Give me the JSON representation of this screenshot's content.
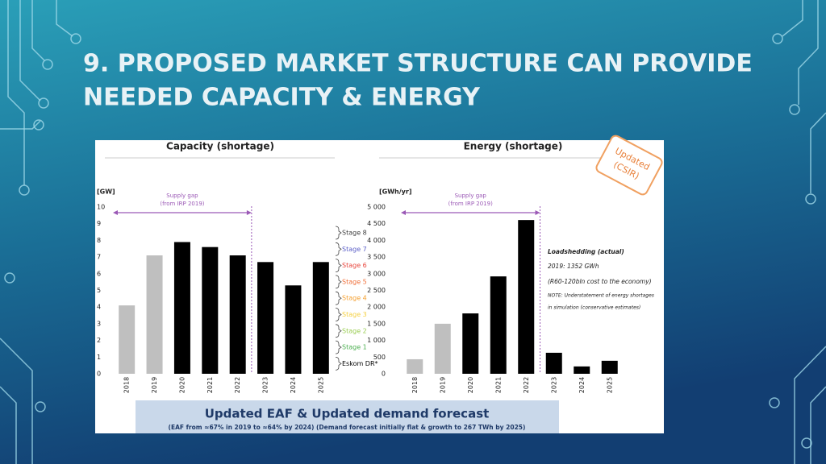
{
  "slide_title": [
    "9. PROPOSED MARKET STRUCTURE CAN PROVIDE",
    "NEEDED CAPACITY & ENERGY"
  ],
  "chart_data": [
    {
      "type": "bar",
      "title": "Capacity (shortage)",
      "y_label": "[GW]",
      "annotation": [
        "Supply gap",
        "(from IRP 2019)"
      ],
      "categories": [
        "2018",
        "2019",
        "2020",
        "2021",
        "2022",
        "2023",
        "2024",
        "2025"
      ],
      "values": [
        4.1,
        7.1,
        7.9,
        7.6,
        7.1,
        6.7,
        5.3,
        6.7
      ],
      "colors": [
        "#bfbfbf",
        "#bfbfbf",
        "#000000",
        "#000000",
        "#000000",
        "#000000",
        "#000000",
        "#000000"
      ],
      "ylim": [
        0,
        10
      ],
      "yticks": [
        0,
        1,
        2,
        3,
        4,
        5,
        6,
        7,
        8,
        9,
        10
      ],
      "stage_labels": [
        {
          "text": "Stage 8",
          "color": "#404040"
        },
        {
          "text": "Stage 7",
          "color": "#5b5fc7"
        },
        {
          "text": "Stage 6",
          "color": "#e8453c"
        },
        {
          "text": "Stage 5",
          "color": "#f0703a"
        },
        {
          "text": "Stage 4",
          "color": "#f5a030"
        },
        {
          "text": "Stage 3",
          "color": "#f5d040"
        },
        {
          "text": "Stage 2",
          "color": "#9acd52"
        },
        {
          "text": "Stage 1",
          "color": "#4caf50"
        },
        {
          "text": "Eskom DR*",
          "color": "#000000"
        }
      ]
    },
    {
      "type": "bar",
      "title": "Energy (shortage)",
      "y_label": "[GWh/yr]",
      "annotation": [
        "Supply gap",
        "(from IRP 2019)"
      ],
      "categories": [
        "2018",
        "2019",
        "2020",
        "2021",
        "2022",
        "2023",
        "2024",
        "2025"
      ],
      "values": [
        435,
        1500,
        1810,
        2920,
        4610,
        630,
        220,
        390
      ],
      "colors": [
        "#bfbfbf",
        "#bfbfbf",
        "#000000",
        "#000000",
        "#000000",
        "#000000",
        "#000000",
        "#000000"
      ],
      "ylim": [
        0,
        5000
      ],
      "yticks": [
        0,
        500,
        {
          "value": 1000,
          "label": "1 000"
        },
        {
          "value": 1500,
          "label": "1 500"
        },
        {
          "value": 2000,
          "label": "2 000"
        },
        {
          "value": 2500,
          "label": "2 500"
        },
        {
          "value": 3000,
          "label": "3 000"
        },
        {
          "value": 3500,
          "label": "3 500"
        },
        {
          "value": 4000,
          "label": "4 000"
        },
        {
          "value": 4500,
          "label": "4 500"
        },
        {
          "value": 5000,
          "label": "5 000"
        }
      ],
      "notes": [
        "Loadshedding (actual)",
        "2019: 1352 GWh",
        "(R60-120bln cost to the economy)",
        "NOTE: Understatement of energy shortages",
        "in simulation (conservative estimates)"
      ]
    }
  ],
  "stamp": [
    "Updated",
    "(CSIR)"
  ],
  "banner": {
    "title": "Updated EAF & Updated demand forecast",
    "subtitle": "(EAF from ≈67% in 2019 to ≈64% by 2024) (Demand forecast initially flat & growth to 267 TWh by 2025)"
  }
}
